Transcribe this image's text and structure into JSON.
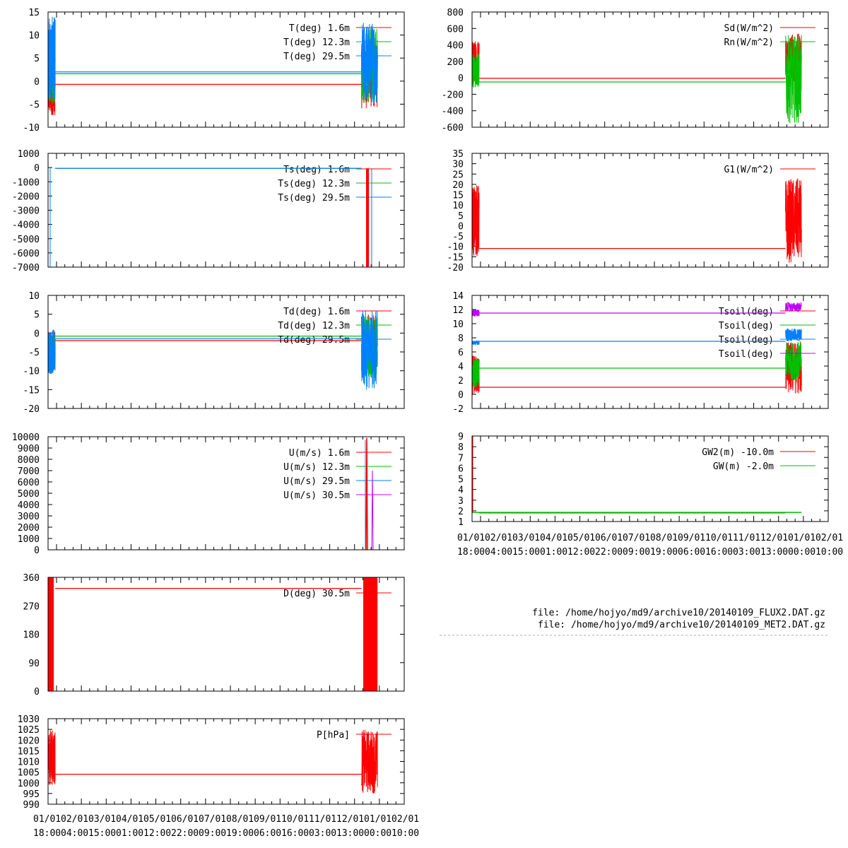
{
  "colors": {
    "s1": "#ff0000",
    "s2": "#00c000",
    "s3": "#0080ff",
    "s4": "#c000ff"
  },
  "xticks_line1": [
    "01/01",
    "02/01",
    "03/01",
    "04/01",
    "05/01",
    "06/01",
    "07/01",
    "08/01",
    "09/01",
    "10/01",
    "11/01",
    "12/01",
    "01/01",
    "02/01"
  ],
  "xticks_line2": [
    "18:00",
    "04:00",
    "15:00",
    "01:00",
    "12:00",
    "22:00",
    "09:00",
    "19:00",
    "06:00",
    "16:00",
    "03:00",
    "13:00",
    "00:00",
    "10:00"
  ],
  "files": {
    "flux": "file: /home/hojyo/md9/archive10/20140109_FLUX2.DAT.gz",
    "met": "file: /home/hojyo/md9/archive10/20140109_MET2.DAT.gz"
  },
  "chart_data": [
    {
      "id": "T",
      "type": "line",
      "ylim": [
        -10,
        15
      ],
      "yticks": [
        -10,
        -5,
        0,
        5,
        10,
        15
      ],
      "series": [
        {
          "name": "T(deg)  1.6m",
          "color": "s1",
          "flat": -0.7,
          "left": [
            -7.5,
            3
          ],
          "right": [
            -6,
            9
          ]
        },
        {
          "name": "T(deg) 12.3m",
          "color": "s2",
          "flat": 1.6,
          "left": [
            -5,
            10
          ],
          "right": [
            -5,
            12
          ]
        },
        {
          "name": "T(deg) 29.5m",
          "color": "s3",
          "flat": 2.0,
          "left": [
            -4,
            14
          ],
          "right": [
            -5,
            13
          ]
        }
      ]
    },
    {
      "id": "Ts",
      "type": "line",
      "ylim": [
        -7000,
        1000
      ],
      "yticks": [
        -7000,
        -6000,
        -5000,
        -4000,
        -3000,
        -2000,
        -1000,
        0,
        1000
      ],
      "series": [
        {
          "name": "Ts(deg)  1.6m",
          "color": "s1",
          "flat": -50
        },
        {
          "name": "Ts(deg) 12.3m",
          "color": "s2",
          "flat": -50
        },
        {
          "name": "Ts(deg) 29.5m",
          "color": "s3",
          "flat": -50
        }
      ]
    },
    {
      "id": "Td",
      "type": "line",
      "ylim": [
        -20,
        10
      ],
      "yticks": [
        -20,
        -15,
        -10,
        -5,
        0,
        5,
        10
      ],
      "series": [
        {
          "name": "Td(deg)  1.6m",
          "color": "s1",
          "flat": -2.0,
          "left": [
            -10,
            1
          ],
          "right": [
            -10,
            5
          ]
        },
        {
          "name": "Td(deg) 12.3m",
          "color": "s2",
          "flat": -0.8,
          "left": [
            -9,
            0
          ],
          "right": [
            -12,
            5
          ]
        },
        {
          "name": "Td(deg) 29.5m",
          "color": "s3",
          "flat": -1.5,
          "left": [
            -11,
            1
          ],
          "right": [
            -15,
            6
          ]
        }
      ]
    },
    {
      "id": "U",
      "type": "line",
      "ylim": [
        0,
        10000
      ],
      "yticks": [
        0,
        1000,
        2000,
        3000,
        4000,
        5000,
        6000,
        7000,
        8000,
        9000,
        10000
      ],
      "series": [
        {
          "name": "U(m/s)  1.6m",
          "color": "s1"
        },
        {
          "name": "U(m/s) 12.3m",
          "color": "s2"
        },
        {
          "name": "U(m/s) 29.5m",
          "color": "s3"
        },
        {
          "name": "U(m/s) 30.5m",
          "color": "s4"
        }
      ]
    },
    {
      "id": "D",
      "type": "line",
      "ylim": [
        0,
        360
      ],
      "yticks": [
        0,
        90,
        180,
        270,
        360
      ],
      "series": [
        {
          "name": "D(deg)  30.5m",
          "color": "s1",
          "flat": 325
        }
      ]
    },
    {
      "id": "P",
      "type": "line",
      "ylim": [
        990,
        1030
      ],
      "yticks": [
        990,
        995,
        1000,
        1005,
        1010,
        1015,
        1020,
        1025,
        1030
      ],
      "series": [
        {
          "name": "P[hPa]",
          "color": "s1",
          "flat": 1004,
          "left": [
            999,
            1025
          ],
          "right": [
            995,
            1025
          ]
        }
      ]
    },
    {
      "id": "Sd",
      "type": "line",
      "ylim": [
        -600,
        800
      ],
      "yticks": [
        -600,
        -400,
        -200,
        0,
        200,
        400,
        600,
        800
      ],
      "series": [
        {
          "name": "Sd(W/m^2)",
          "color": "s1",
          "flat": -5,
          "left": [
            -50,
            450
          ],
          "right": [
            -50,
            540
          ]
        },
        {
          "name": "Rn(W/m^2)",
          "color": "s2",
          "flat": -50,
          "left": [
            -120,
            300
          ],
          "right": [
            -550,
            520
          ]
        }
      ]
    },
    {
      "id": "G1",
      "type": "line",
      "ylim": [
        -20,
        35
      ],
      "yticks": [
        -20,
        -15,
        -10,
        -5,
        0,
        5,
        10,
        15,
        20,
        25,
        30,
        35
      ],
      "series": [
        {
          "name": "G1(W/m^2)",
          "color": "s1",
          "flat": -11,
          "left": [
            -15,
            20
          ],
          "right": [
            -18,
            23
          ]
        }
      ]
    },
    {
      "id": "Tsoil",
      "type": "line",
      "ylim": [
        -2,
        14
      ],
      "yticks": [
        -2,
        0,
        2,
        4,
        6,
        8,
        10,
        12,
        14
      ],
      "series": [
        {
          "name": "Tsoil(deg)",
          "color": "s1",
          "flat": 1.0,
          "left": [
            0,
            5.5
          ],
          "right": [
            0,
            7.5
          ]
        },
        {
          "name": "Tsoil(deg)",
          "color": "s2",
          "flat": 3.7,
          "left": [
            1,
            5
          ],
          "right": [
            2,
            7.5
          ]
        },
        {
          "name": "Tsoil(deg)",
          "color": "s3",
          "flat": 7.5,
          "left": [
            7,
            7.6
          ],
          "right": [
            7.5,
            9.3
          ]
        },
        {
          "name": "Tsoil(deg)",
          "color": "s4",
          "flat": 11.5,
          "left": [
            11,
            12
          ],
          "right": [
            11.7,
            13
          ]
        }
      ]
    },
    {
      "id": "GW",
      "type": "line",
      "ylim": [
        1,
        9
      ],
      "yticks": [
        1,
        2,
        3,
        4,
        5,
        6,
        7,
        8,
        9
      ],
      "series": [
        {
          "name": "GW2(m) -10.0m",
          "color": "s1",
          "flat": 1.8
        },
        {
          "name": "GW(m) -2.0m",
          "color": "s2",
          "flat": 1.85
        }
      ]
    }
  ]
}
